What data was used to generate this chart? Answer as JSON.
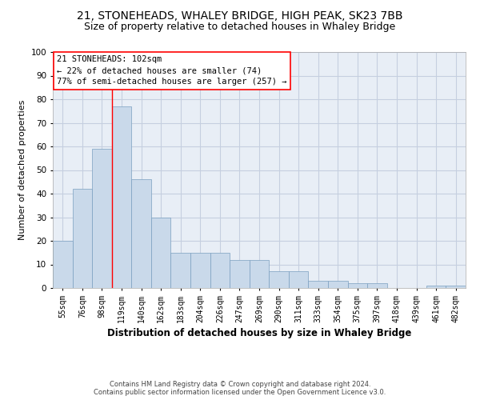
{
  "title": "21, STONEHEADS, WHALEY BRIDGE, HIGH PEAK, SK23 7BB",
  "subtitle": "Size of property relative to detached houses in Whaley Bridge",
  "xlabel": "Distribution of detached houses by size in Whaley Bridge",
  "ylabel": "Number of detached properties",
  "bar_values": [
    20,
    42,
    59,
    77,
    46,
    30,
    15,
    15,
    15,
    12,
    12,
    7,
    7,
    3,
    3,
    2,
    2,
    0,
    0,
    1,
    1
  ],
  "x_labels": [
    "55sqm",
    "76sqm",
    "98sqm",
    "119sqm",
    "140sqm",
    "162sqm",
    "183sqm",
    "204sqm",
    "226sqm",
    "247sqm",
    "269sqm",
    "290sqm",
    "311sqm",
    "333sqm",
    "354sqm",
    "375sqm",
    "397sqm",
    "418sqm",
    "439sqm",
    "461sqm",
    "482sqm"
  ],
  "bar_color": "#c9d9ea",
  "bar_edge_color": "#7a9fc0",
  "grid_color": "#c5cfe0",
  "background_color": "#e8eef6",
  "annotation_title": "21 STONEHEADS: 102sqm",
  "annotation_line1": "← 22% of detached houses are smaller (74)",
  "annotation_line2": "77% of semi-detached houses are larger (257) →",
  "footer1": "Contains HM Land Registry data © Crown copyright and database right 2024.",
  "footer2": "Contains public sector information licensed under the Open Government Licence v3.0.",
  "ylim": [
    0,
    100
  ],
  "title_fontsize": 10,
  "subtitle_fontsize": 9,
  "xlabel_fontsize": 8.5,
  "ylabel_fontsize": 8,
  "tick_fontsize": 7,
  "annotation_fontsize": 7.5,
  "footer_fontsize": 6
}
